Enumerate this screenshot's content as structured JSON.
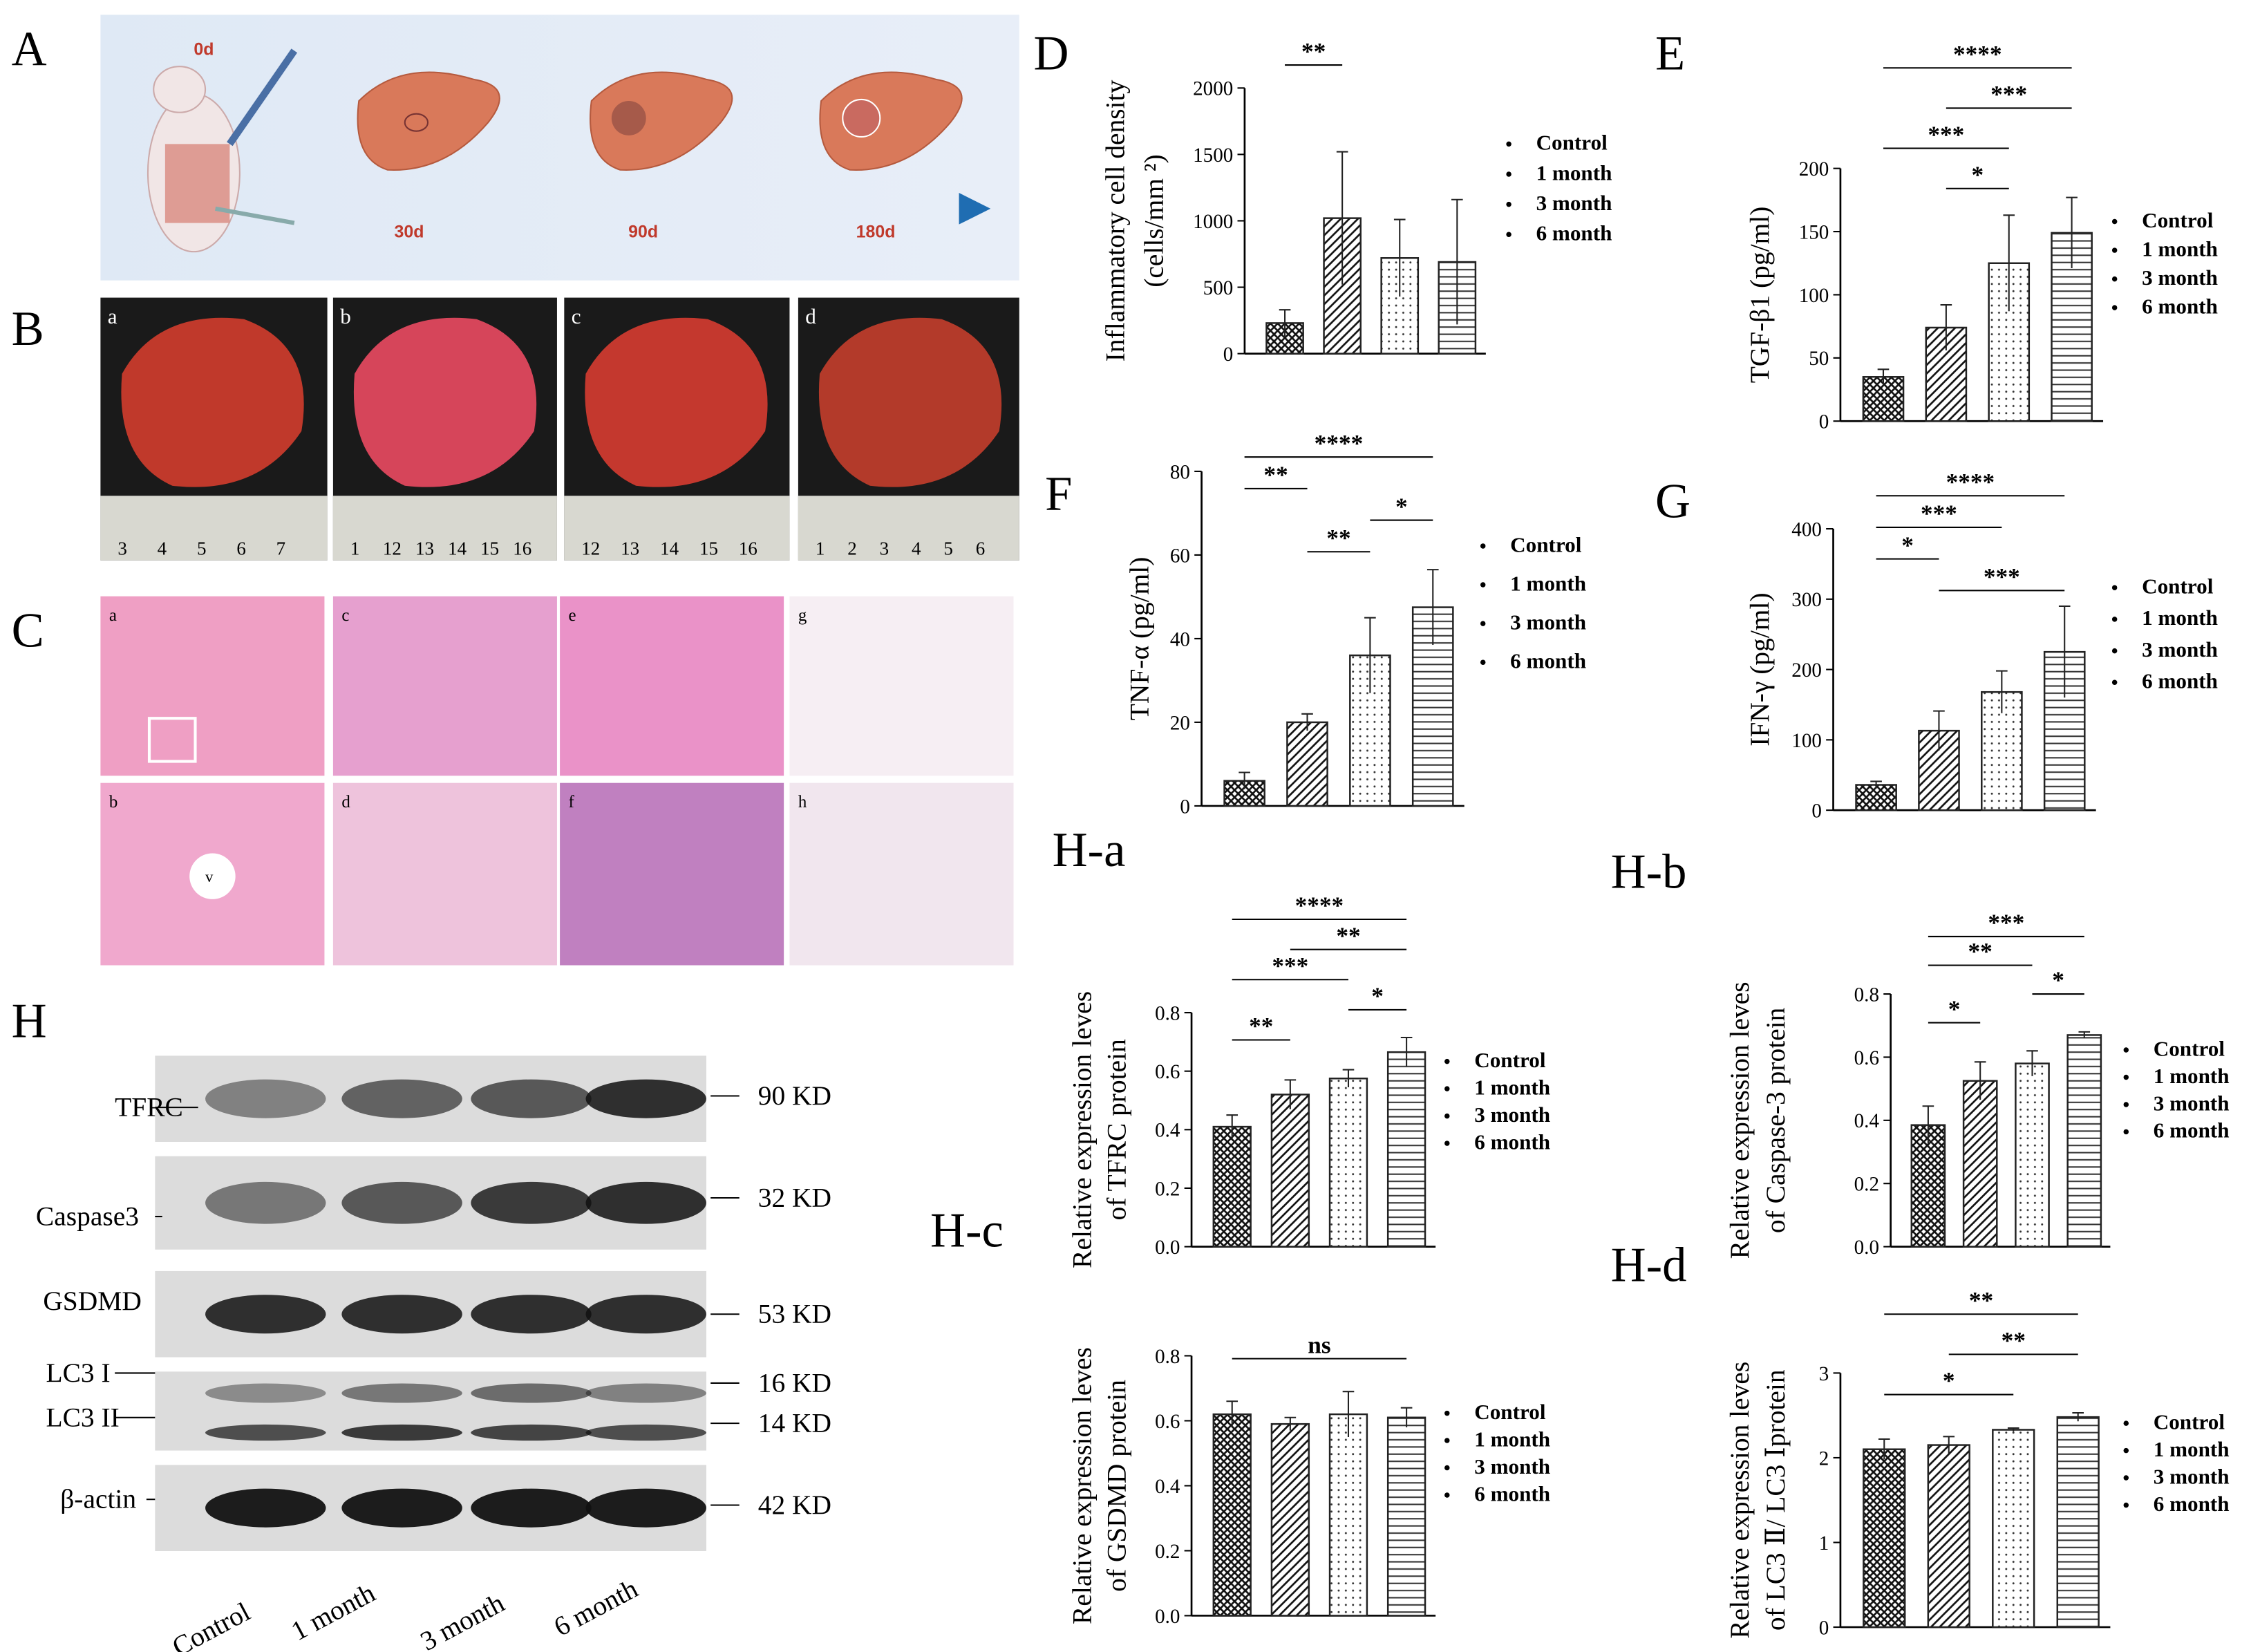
{
  "panel_labels": {
    "A": "A",
    "B": "B",
    "C": "C",
    "D": "D",
    "E": "E",
    "F": "F",
    "G": "G",
    "H": "H",
    "Ha": "H-a",
    "Hb": "H-b",
    "Hc": "H-c",
    "Hd": "H-d"
  },
  "schematic": {
    "days": [
      "0d",
      "30d",
      "90d",
      "180d"
    ]
  },
  "photos": [
    {
      "label": "a",
      "ruler": [
        "3",
        "4",
        "5",
        "6",
        "7"
      ]
    },
    {
      "label": "b",
      "ruler": [
        "1",
        "12",
        "13",
        "14",
        "15",
        "16"
      ]
    },
    {
      "label": "c",
      "ruler": [
        "12",
        "13",
        "14",
        "15",
        "16"
      ]
    },
    {
      "label": "d",
      "ruler": [
        "1",
        "2",
        "3",
        "4",
        "5",
        "6"
      ]
    }
  ],
  "histology": {
    "top": [
      "a",
      "c",
      "e",
      "g"
    ],
    "bottom": [
      "b",
      "d",
      "f",
      "h"
    ],
    "vessel": "v"
  },
  "blot": {
    "rows": [
      "TFRC",
      "Caspase3",
      "GSDMD",
      "LC3 I",
      "LC3 II",
      "β-actin"
    ],
    "sizes": [
      "90 KD",
      "32 KD",
      "53 KD",
      "16 KD",
      "14 KD",
      "42 KD"
    ],
    "lanes": [
      "Control",
      "1 month",
      "3 month",
      "6 month"
    ]
  },
  "chart_data": [
    {
      "type": "bar",
      "y_label": [
        "Inflammatory cell density",
        "(cells/mm ²)"
      ],
      "categories": [
        "Control",
        "1 month",
        "3 month",
        "6 month"
      ],
      "values": [
        230,
        1020,
        720,
        690
      ],
      "errors": [
        100,
        500,
        290,
        470
      ],
      "ylim": [
        0,
        2000
      ],
      "yticks": [
        0,
        500,
        1000,
        1500,
        2000
      ],
      "significance": [
        {
          "text": "**",
          "between": [
            "Control",
            "1 month"
          ]
        }
      ]
    },
    {
      "type": "bar",
      "y_label": "TGF-β1 (pg/ml)",
      "categories": [
        "Control",
        "1 month",
        "3 month",
        "6 month"
      ],
      "values": [
        35,
        74,
        125,
        149
      ],
      "errors": [
        6,
        18,
        38,
        28
      ],
      "ylim": [
        0,
        200
      ],
      "yticks": [
        0,
        50,
        100,
        150,
        200
      ],
      "significance": [
        {
          "text": "****",
          "between": [
            "Control",
            "6 month"
          ]
        },
        {
          "text": "***",
          "between": [
            "1 month",
            "6 month"
          ]
        },
        {
          "text": "***",
          "between": [
            "Control",
            "3 month"
          ]
        },
        {
          "text": "*",
          "between": [
            "1 month",
            "3 month"
          ]
        }
      ]
    },
    {
      "type": "bar",
      "y_label": "TNF-α (pg/ml)",
      "categories": [
        "Control",
        "1 month",
        "3 month",
        "6 month"
      ],
      "values": [
        6,
        20,
        36,
        47.5
      ],
      "errors": [
        2,
        2,
        9,
        9
      ],
      "ylim": [
        0,
        80
      ],
      "yticks": [
        0,
        20,
        40,
        60,
        80
      ],
      "significance": [
        {
          "text": "****",
          "between": [
            "Control",
            "6 month"
          ]
        },
        {
          "text": "**",
          "between": [
            "Control",
            "1 month"
          ]
        },
        {
          "text": "*",
          "between": [
            "3 month",
            "6 month"
          ]
        },
        {
          "text": "**",
          "between": [
            "1 month",
            "3 month"
          ]
        }
      ]
    },
    {
      "type": "bar",
      "y_label": "IFN-γ (pg/ml)",
      "categories": [
        "Control",
        "1 month",
        "3 month",
        "6 month"
      ],
      "values": [
        36,
        113,
        168,
        225
      ],
      "errors": [
        5,
        28,
        30,
        65
      ],
      "ylim": [
        0,
        400
      ],
      "yticks": [
        0,
        100,
        200,
        300,
        400
      ],
      "significance": [
        {
          "text": "****",
          "between": [
            "Control",
            "6 month"
          ]
        },
        {
          "text": "***",
          "between": [
            "Control",
            "3 month"
          ]
        },
        {
          "text": "*",
          "between": [
            "Control",
            "1 month"
          ]
        },
        {
          "text": "***",
          "between": [
            "1 month",
            "6 month"
          ]
        }
      ]
    },
    {
      "type": "bar",
      "y_label": [
        "Relative expression leves",
        "of TFRC protein"
      ],
      "categories": [
        "Control",
        "1 month",
        "3 month",
        "6 month"
      ],
      "values": [
        0.41,
        0.52,
        0.575,
        0.665
      ],
      "errors": [
        0.04,
        0.05,
        0.03,
        0.05
      ],
      "ylim": [
        0,
        0.8
      ],
      "yticks": [
        {
          "value": 0,
          "label": "0.0"
        },
        0.2,
        0.4,
        0.6,
        0.8
      ],
      "significance": [
        {
          "text": "****",
          "between": [
            "Control",
            "6 month"
          ]
        },
        {
          "text": "**",
          "between": [
            "1 month",
            "6 month"
          ]
        },
        {
          "text": "***",
          "between": [
            "Control",
            "3 month"
          ]
        },
        {
          "text": "*",
          "between": [
            "3 month",
            "6 month"
          ]
        },
        {
          "text": "**",
          "between": [
            "Control",
            "1 month"
          ]
        }
      ]
    },
    {
      "type": "bar",
      "y_label": [
        "Relative expression leves",
        "of Caspase-3 protein"
      ],
      "categories": [
        "Control",
        "1 month",
        "3 month",
        "6 month"
      ],
      "values": [
        0.385,
        0.525,
        0.58,
        0.67
      ],
      "errors": [
        0.06,
        0.06,
        0.04,
        0.01
      ],
      "ylim": [
        0,
        0.8
      ],
      "yticks": [
        {
          "value": 0,
          "label": "0.0"
        },
        0.2,
        0.4,
        0.6,
        0.8
      ],
      "significance": [
        {
          "text": "***",
          "between": [
            "Control",
            "6 month"
          ]
        },
        {
          "text": "**",
          "between": [
            "Control",
            "3 month"
          ]
        },
        {
          "text": "*",
          "between": [
            "3 month",
            "6 month"
          ]
        },
        {
          "text": "*",
          "between": [
            "Control",
            "1 month"
          ]
        }
      ]
    },
    {
      "type": "bar",
      "y_label": [
        "Relative expression leves",
        "of GSDMD protein"
      ],
      "categories": [
        "Control",
        "1 month",
        "3 month",
        "6 month"
      ],
      "values": [
        0.62,
        0.59,
        0.62,
        0.61
      ],
      "errors": [
        0.04,
        0.02,
        0.07,
        0.03
      ],
      "ylim": [
        0,
        0.8
      ],
      "yticks": [
        {
          "value": 0,
          "label": "0.0"
        },
        0.2,
        0.4,
        0.6,
        0.8
      ],
      "significance": [
        {
          "text": "ns",
          "between": [
            "Control",
            "6 month"
          ]
        }
      ]
    },
    {
      "type": "bar",
      "y_label": [
        "Relative expression leves",
        "of LC3 Ⅱ/ LC3 Ⅰprotein"
      ],
      "categories": [
        "Control",
        "1 month",
        "3 month",
        "6 month"
      ],
      "values": [
        2.1,
        2.15,
        2.33,
        2.48
      ],
      "errors": [
        0.12,
        0.1,
        0.02,
        0.05
      ],
      "ylim": [
        0,
        3
      ],
      "yticks": [
        0,
        1,
        2,
        3
      ],
      "significance": [
        {
          "text": "**",
          "between": [
            "Control",
            "6 month"
          ]
        },
        {
          "text": "**",
          "between": [
            "1 month",
            "6 month"
          ]
        },
        {
          "text": "*",
          "between": [
            "Control",
            "3 month"
          ]
        }
      ]
    }
  ]
}
